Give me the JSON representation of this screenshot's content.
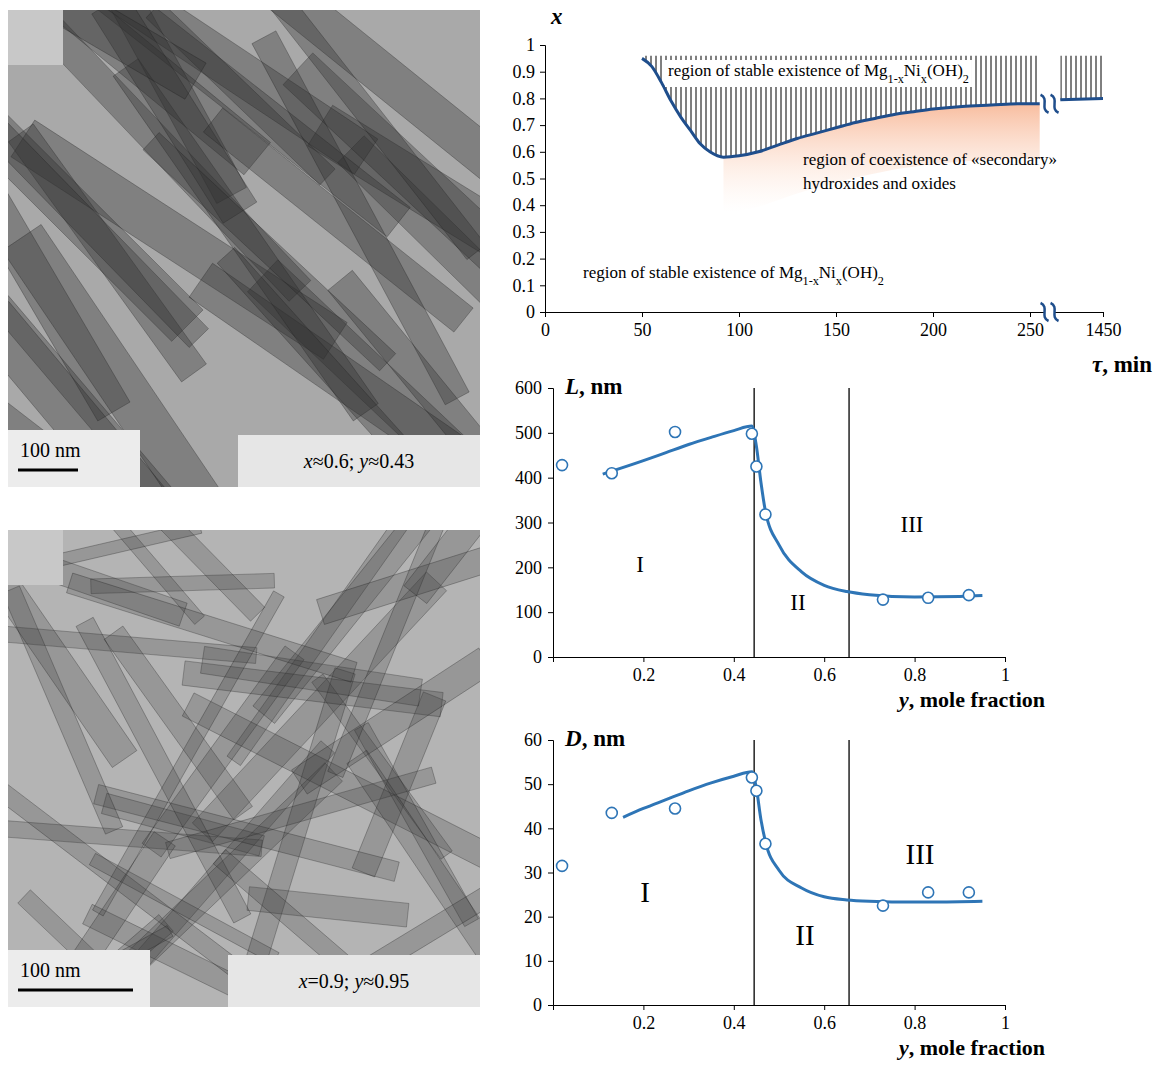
{
  "images": [
    {
      "scale_bar": "100 nm",
      "caption": "x≈0.6; y≈0.43"
    },
    {
      "scale_bar": "100 nm",
      "caption": "x=0.9; y≈0.95"
    }
  ],
  "chart_data": [
    {
      "type": "line",
      "x_label": "τ, min",
      "y_label": "x",
      "xlim": [
        0,
        1450
      ],
      "xticks": [
        0,
        50,
        100,
        150,
        200,
        250,
        1450
      ],
      "ylim": [
        0,
        1
      ],
      "yticks": [
        0,
        0.1,
        0.2,
        0.3,
        0.4,
        0.5,
        0.6,
        0.7,
        0.8,
        0.9,
        1
      ],
      "hatch_top": 0.96,
      "series": [
        {
          "color": "#1f4e8c",
          "line_style": "solid",
          "x": [
            50,
            55,
            60,
            65,
            70,
            75,
            80,
            85,
            92,
            100,
            110,
            120,
            130,
            140,
            150,
            160,
            170,
            180,
            190,
            200,
            215,
            230,
            245,
            255,
            null,
            1428,
            1450
          ],
          "values": [
            0.95,
            0.92,
            0.86,
            0.79,
            0.73,
            0.68,
            0.63,
            0.6,
            0.58,
            0.585,
            0.6,
            0.625,
            0.65,
            0.67,
            0.69,
            0.71,
            0.725,
            0.74,
            0.75,
            0.76,
            0.77,
            0.775,
            0.78,
            0.78,
            null,
            0.795,
            0.8
          ]
        }
      ],
      "annotations": [
        {
          "text": "region of stable existence of Mg1-xNix(OH)2"
        },
        {
          "text": "region of stable existence of Mg1-xNix(OH)2"
        },
        {
          "text": [
            "region of coexistence of «secondary»",
            "hydroxides and oxides"
          ]
        }
      ]
    },
    {
      "type": "scatter",
      "x_label": "y, mole fraction",
      "y_label": "L, nm",
      "xlim": [
        0,
        1
      ],
      "xticks": [
        0.2,
        0.4,
        0.6,
        0.8,
        1
      ],
      "ylim": [
        0,
        600
      ],
      "yticks": [
        0,
        100,
        200,
        300,
        400,
        500,
        600
      ],
      "vlines": [
        0.445,
        0.655
      ],
      "series": [
        {
          "type": "scatter",
          "marker": "circle",
          "color": "#2e75b6",
          "x": [
            0.02,
            0.13,
            0.27,
            0.44,
            0.45,
            0.47,
            0.73,
            0.83,
            0.92
          ],
          "values": [
            428,
            410,
            502,
            498,
            425,
            318,
            128,
            132,
            138
          ]
        },
        {
          "type": "line",
          "line_style": "solid",
          "color": "#2e75b6",
          "x": [
            0.11,
            0.2,
            0.25,
            0.3,
            0.35,
            0.4,
            0.44,
            0.45,
            0.46,
            0.47,
            0.5,
            0.55,
            0.6,
            0.65,
            0.7,
            0.8,
            0.9,
            0.95
          ],
          "values": [
            408,
            438,
            456,
            474,
            490,
            505,
            515,
            470,
            390,
            325,
            250,
            190,
            160,
            146,
            139,
            134,
            135,
            137
          ]
        }
      ],
      "annotations": [
        {
          "text": "I"
        },
        {
          "text": "II"
        },
        {
          "text": "III"
        }
      ]
    },
    {
      "type": "scatter",
      "x_label": "y, mole fraction",
      "y_label": "D, nm",
      "xlim": [
        0,
        1
      ],
      "xticks": [
        0.2,
        0.4,
        0.6,
        0.8,
        1
      ],
      "ylim": [
        0,
        60
      ],
      "yticks": [
        0,
        10,
        20,
        30,
        40,
        50,
        60
      ],
      "vlines": [
        0.445,
        0.655
      ],
      "series": [
        {
          "type": "scatter",
          "marker": "circle",
          "color": "#2e75b6",
          "x": [
            0.02,
            0.13,
            0.27,
            0.44,
            0.45,
            0.47,
            0.73,
            0.83,
            0.92
          ],
          "values": [
            31.5,
            43.5,
            44.5,
            51.5,
            48.5,
            36.5,
            22.5,
            25.5,
            25.5
          ]
        },
        {
          "type": "line",
          "line_style": "solid",
          "color": "#2e75b6",
          "x": [
            0.155,
            0.2,
            0.25,
            0.3,
            0.35,
            0.4,
            0.44,
            0.45,
            0.46,
            0.47,
            0.5,
            0.55,
            0.6,
            0.65,
            0.7,
            0.8,
            0.9,
            0.95
          ],
          "values": [
            42.5,
            44.5,
            46.5,
            48.5,
            50.3,
            51.8,
            52.8,
            49,
            42,
            37,
            30.5,
            26.5,
            24.5,
            23.8,
            23.5,
            23.3,
            23.4,
            23.5
          ]
        }
      ],
      "annotations": [
        {
          "text": "I"
        },
        {
          "text": "II"
        },
        {
          "text": "III"
        }
      ]
    }
  ]
}
